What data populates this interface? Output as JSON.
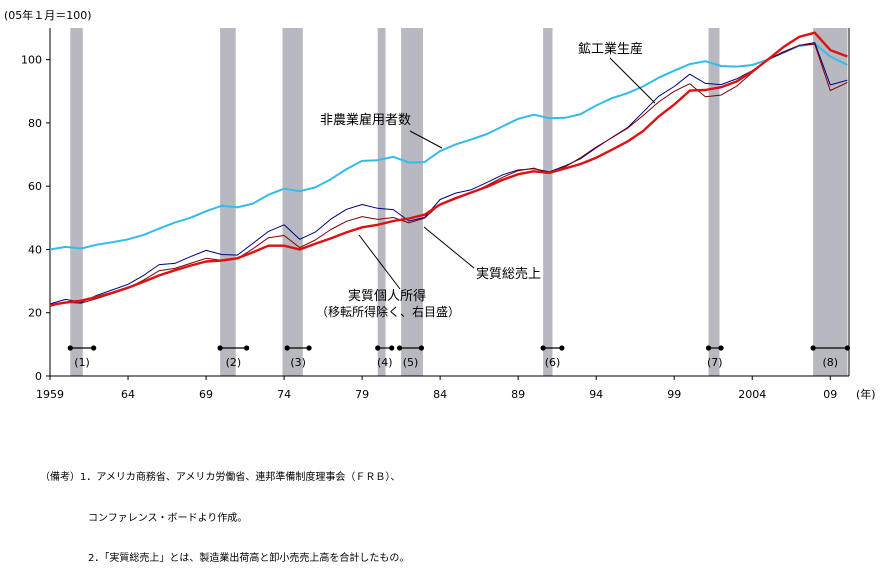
{
  "chart_data": {
    "type": "line",
    "unit_label": "(05年１月＝100)",
    "x_unit_label": "(年)",
    "ylim": [
      0,
      110
    ],
    "y_ticks": [
      0,
      20,
      40,
      60,
      80,
      100
    ],
    "xlim": [
      1959,
      2010.2
    ],
    "x_ticks": [
      {
        "year": 1959,
        "label": "1959"
      },
      {
        "year": 1964,
        "label": "64"
      },
      {
        "year": 1969,
        "label": "69"
      },
      {
        "year": 1974,
        "label": "74"
      },
      {
        "year": 1979,
        "label": "79"
      },
      {
        "year": 1984,
        "label": "84"
      },
      {
        "year": 1989,
        "label": "89"
      },
      {
        "year": 1994,
        "label": "94"
      },
      {
        "year": 1999,
        "label": "99"
      },
      {
        "year": 2004,
        "label": "2004"
      },
      {
        "year": 2009,
        "label": "09"
      }
    ],
    "recessions": [
      {
        "label": "(1)",
        "start": 1960.3,
        "end": 1961.1,
        "bar_start": 1960.3,
        "bar_end": 1961.8
      },
      {
        "label": "(2)",
        "start": 1969.9,
        "end": 1970.9,
        "bar_start": 1969.9,
        "bar_end": 1971.6
      },
      {
        "label": "(3)",
        "start": 1973.9,
        "end": 1975.2,
        "bar_start": 1974.2,
        "bar_end": 1975.6
      },
      {
        "label": "(4)",
        "start": 1980.0,
        "end": 1980.5,
        "bar_start": 1980.0,
        "bar_end": 1980.9
      },
      {
        "label": "(5)",
        "start": 1981.5,
        "end": 1982.9,
        "bar_start": 1981.4,
        "bar_end": 1982.8
      },
      {
        "label": "(6)",
        "start": 1990.6,
        "end": 1991.2,
        "bar_start": 1990.6,
        "bar_end": 1991.8
      },
      {
        "label": "(7)",
        "start": 2001.2,
        "end": 2001.9,
        "bar_start": 2001.2,
        "bar_end": 2002.0
      },
      {
        "label": "(8)",
        "start": 2007.9,
        "end": 2010.1,
        "bar_start": 2007.9,
        "bar_end": 2010.1
      }
    ],
    "series": [
      {
        "name": "非農業雇用者数",
        "color": "#33bbee",
        "points": [
          [
            1959,
            40
          ],
          [
            1960,
            40.8
          ],
          [
            1961,
            40.3
          ],
          [
            1962,
            41.5
          ],
          [
            1963,
            42.3
          ],
          [
            1964,
            43.2
          ],
          [
            1965,
            44.6
          ],
          [
            1966,
            46.6
          ],
          [
            1967,
            48.5
          ],
          [
            1968,
            50.0
          ],
          [
            1969,
            52.1
          ],
          [
            1970,
            53.8
          ],
          [
            1971,
            53.3
          ],
          [
            1972,
            54.5
          ],
          [
            1973,
            57.3
          ],
          [
            1974,
            59.2
          ],
          [
            1975,
            58.4
          ],
          [
            1976,
            59.6
          ],
          [
            1977,
            62.2
          ],
          [
            1978,
            65.4
          ],
          [
            1979,
            68.0
          ],
          [
            1980,
            68.2
          ],
          [
            1981,
            69.3
          ],
          [
            1982,
            67.5
          ],
          [
            1983,
            67.6
          ],
          [
            1984,
            71.1
          ],
          [
            1985,
            73.2
          ],
          [
            1986,
            74.8
          ],
          [
            1987,
            76.5
          ],
          [
            1988,
            78.9
          ],
          [
            1989,
            81.3
          ],
          [
            1990,
            82.6
          ],
          [
            1991,
            81.5
          ],
          [
            1992,
            81.6
          ],
          [
            1993,
            82.8
          ],
          [
            1994,
            85.5
          ],
          [
            1995,
            87.8
          ],
          [
            1996,
            89.4
          ],
          [
            1997,
            91.5
          ],
          [
            1998,
            94.3
          ],
          [
            1999,
            96.5
          ],
          [
            2000,
            98.6
          ],
          [
            2001,
            99.5
          ],
          [
            2002,
            98.0
          ],
          [
            2003,
            97.8
          ],
          [
            2004,
            98.3
          ],
          [
            2005,
            100
          ],
          [
            2006,
            102.3
          ],
          [
            2007,
            104.3
          ],
          [
            2008,
            105.0
          ],
          [
            2009,
            101.0
          ],
          [
            2010.1,
            98.3
          ]
        ]
      },
      {
        "name": "鉱工業生産",
        "color": "#000080",
        "points": [
          [
            1959,
            22.8
          ],
          [
            1960,
            24.2
          ],
          [
            1961,
            23.3
          ],
          [
            1962,
            25.5
          ],
          [
            1963,
            27.2
          ],
          [
            1964,
            29.0
          ],
          [
            1965,
            31.8
          ],
          [
            1966,
            35.2
          ],
          [
            1967,
            35.6
          ],
          [
            1968,
            37.7
          ],
          [
            1969,
            39.7
          ],
          [
            1970,
            38.4
          ],
          [
            1971,
            38.2
          ],
          [
            1972,
            41.9
          ],
          [
            1973,
            45.7
          ],
          [
            1974,
            47.8
          ],
          [
            1975,
            43.2
          ],
          [
            1976,
            45.5
          ],
          [
            1977,
            49.6
          ],
          [
            1978,
            52.7
          ],
          [
            1979,
            54.2
          ],
          [
            1980,
            53.0
          ],
          [
            1981,
            52.6
          ],
          [
            1982,
            49.0
          ],
          [
            1983,
            50.1
          ],
          [
            1984,
            55.8
          ],
          [
            1985,
            57.8
          ],
          [
            1986,
            58.9
          ],
          [
            1987,
            61.2
          ],
          [
            1988,
            63.6
          ],
          [
            1989,
            65.1
          ],
          [
            1990,
            65.5
          ],
          [
            1991,
            64.5
          ],
          [
            1992,
            66.4
          ],
          [
            1993,
            68.7
          ],
          [
            1994,
            72.1
          ],
          [
            1995,
            75.4
          ],
          [
            1996,
            78.5
          ],
          [
            1997,
            83.4
          ],
          [
            1998,
            88.4
          ],
          [
            1999,
            91.5
          ],
          [
            2000,
            95.4
          ],
          [
            2001,
            92.5
          ],
          [
            2002,
            92.1
          ],
          [
            2003,
            93.9
          ],
          [
            2004,
            96.5
          ],
          [
            2005,
            100
          ],
          [
            2006,
            102.2
          ],
          [
            2007,
            104.5
          ],
          [
            2008,
            105.4
          ],
          [
            2009,
            92.0
          ],
          [
            2010.1,
            93.5
          ]
        ]
      },
      {
        "name": "実質総売上",
        "color": "#800000",
        "points": [
          [
            1959,
            22.0
          ],
          [
            1960,
            23.3
          ],
          [
            1961,
            23.0
          ],
          [
            1962,
            24.5
          ],
          [
            1963,
            26.0
          ],
          [
            1964,
            27.8
          ],
          [
            1965,
            30.3
          ],
          [
            1966,
            33.3
          ],
          [
            1967,
            34.0
          ],
          [
            1968,
            35.6
          ],
          [
            1969,
            37.2
          ],
          [
            1970,
            36.6
          ],
          [
            1971,
            37.1
          ],
          [
            1972,
            40.2
          ],
          [
            1973,
            43.7
          ],
          [
            1974,
            44.4
          ],
          [
            1975,
            40.6
          ],
          [
            1976,
            43.0
          ],
          [
            1977,
            46.3
          ],
          [
            1978,
            48.9
          ],
          [
            1979,
            50.4
          ],
          [
            1980,
            49.5
          ],
          [
            1981,
            50.1
          ],
          [
            1982,
            48.4
          ],
          [
            1983,
            49.9
          ],
          [
            1984,
            54.3
          ],
          [
            1985,
            56.5
          ],
          [
            1986,
            57.8
          ],
          [
            1987,
            60.2
          ],
          [
            1988,
            62.8
          ],
          [
            1989,
            64.9
          ],
          [
            1990,
            65.7
          ],
          [
            1991,
            64.0
          ],
          [
            1992,
            66.1
          ],
          [
            1993,
            69.0
          ],
          [
            1994,
            72.4
          ],
          [
            1995,
            75.3
          ],
          [
            1996,
            78.3
          ],
          [
            1997,
            82.3
          ],
          [
            1998,
            86.6
          ],
          [
            1999,
            90.0
          ],
          [
            2000,
            92.4
          ],
          [
            2001,
            88.3
          ],
          [
            2002,
            88.8
          ],
          [
            2003,
            91.6
          ],
          [
            2004,
            95.9
          ],
          [
            2005,
            100
          ],
          [
            2006,
            102.5
          ],
          [
            2007,
            104.5
          ],
          [
            2008,
            104.9
          ],
          [
            2009,
            90.2
          ],
          [
            2010.1,
            92.8
          ]
        ]
      },
      {
        "name": "実質個人所得",
        "name_note": "（移転所得除く、右目盛）",
        "color": "#dd1111",
        "points": [
          [
            1959,
            22.4
          ],
          [
            1960,
            23.2
          ],
          [
            1961,
            23.8
          ],
          [
            1962,
            25.0
          ],
          [
            1963,
            26.3
          ],
          [
            1964,
            27.9
          ],
          [
            1965,
            29.8
          ],
          [
            1966,
            31.8
          ],
          [
            1967,
            33.4
          ],
          [
            1968,
            34.9
          ],
          [
            1969,
            36.2
          ],
          [
            1970,
            36.5
          ],
          [
            1971,
            37.2
          ],
          [
            1972,
            39.1
          ],
          [
            1973,
            41.2
          ],
          [
            1974,
            41.2
          ],
          [
            1975,
            40.0
          ],
          [
            1976,
            41.8
          ],
          [
            1977,
            43.5
          ],
          [
            1978,
            45.4
          ],
          [
            1979,
            47.0
          ],
          [
            1980,
            47.8
          ],
          [
            1981,
            49.0
          ],
          [
            1982,
            49.8
          ],
          [
            1983,
            51.0
          ],
          [
            1984,
            54.2
          ],
          [
            1985,
            56.2
          ],
          [
            1986,
            58.0
          ],
          [
            1987,
            59.8
          ],
          [
            1988,
            62.0
          ],
          [
            1989,
            63.8
          ],
          [
            1990,
            64.7
          ],
          [
            1991,
            64.2
          ],
          [
            1992,
            65.6
          ],
          [
            1993,
            67.0
          ],
          [
            1994,
            69.0
          ],
          [
            1995,
            71.5
          ],
          [
            1996,
            74.1
          ],
          [
            1997,
            77.4
          ],
          [
            1998,
            82.0
          ],
          [
            1999,
            85.8
          ],
          [
            2000,
            90.2
          ],
          [
            2001,
            90.4
          ],
          [
            2002,
            91.3
          ],
          [
            2003,
            93.1
          ],
          [
            2004,
            96.2
          ],
          [
            2005,
            100
          ],
          [
            2006,
            104.0
          ],
          [
            2007,
            107.2
          ],
          [
            2008,
            108.5
          ],
          [
            2009,
            103.0
          ],
          [
            2010.1,
            101.0
          ]
        ]
      }
    ],
    "annotations": [
      {
        "text": "鉱工業生産",
        "series": "鉱工業生産"
      },
      {
        "text": "非農業雇用者数",
        "series": "非農業雇用者数"
      },
      {
        "text": "実質総売上",
        "series": "実質総売上"
      },
      {
        "text": "実質個人所得",
        "series": "実質個人所得"
      },
      {
        "text": "（移転所得除く、右目盛）",
        "series": "実質個人所得"
      }
    ]
  },
  "notes": {
    "line1": "（備考）1．アメリカ商務省、アメリカ労働省、連邦準備制度理事会（ＦＲＢ）、",
    "line2": "コンファレンス・ボードより作成。",
    "line3": "2．「実質総売上」とは、製造業出荷高と卸小売売上高を合計したもの。"
  }
}
